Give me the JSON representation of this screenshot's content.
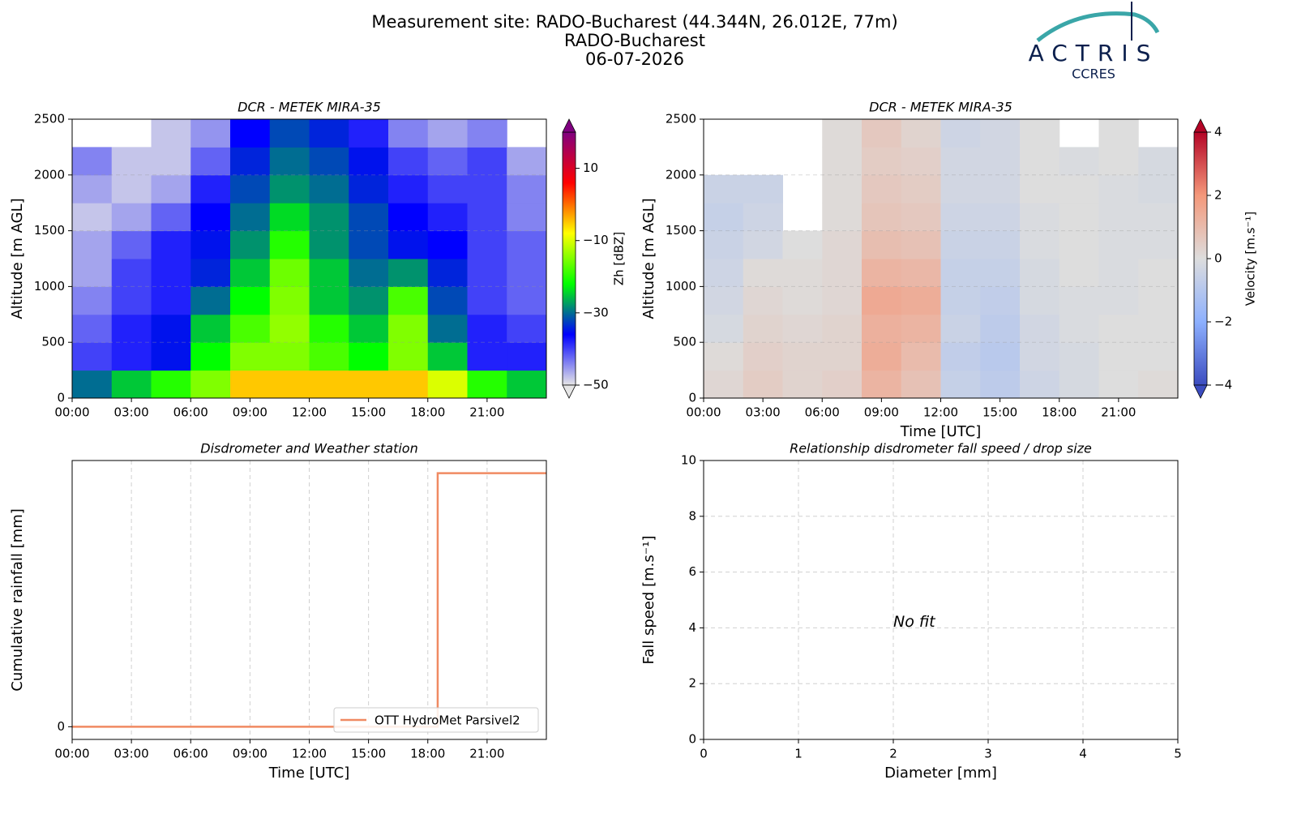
{
  "figure": {
    "title": [
      "Measurement site: RADO-Bucharest (44.344N, 26.012E, 77m)",
      "RADO-Bucharest",
      "06-07-2026"
    ]
  },
  "logo": {
    "name": "ACTRIS",
    "sub": "CCRES"
  },
  "chart_data": [
    {
      "type": "heatmap",
      "title": "DCR - METEK MIRA-35",
      "ylabel": "Altitude [m AGL]",
      "colorbar_label": "Zh [dBZ]",
      "xlim": [
        0,
        24
      ],
      "xticks": [
        {
          "value": 0,
          "label": "00:00"
        },
        {
          "value": 3,
          "label": "03:00"
        },
        {
          "value": 6,
          "label": "06:00"
        },
        {
          "value": 9,
          "label": "09:00"
        },
        {
          "value": 12,
          "label": "12:00"
        },
        {
          "value": 15,
          "label": "15:00"
        },
        {
          "value": 18,
          "label": "18:00"
        },
        {
          "value": 21,
          "label": "21:00"
        }
      ],
      "ylim": [
        0,
        2500
      ],
      "yticks": [
        0,
        500,
        1000,
        1500,
        2000,
        2500
      ],
      "clim": [
        -50,
        20
      ],
      "cticks": [
        {
          "value": -50,
          "label": "−50"
        },
        {
          "value": -30,
          "label": "−30"
        },
        {
          "value": -10,
          "label": "−10"
        },
        10
      ],
      "colors": [
        "#e6e6e6",
        "#0000ff",
        "#00ff00",
        "#ffff00",
        "#ff0000",
        "#800080"
      ],
      "time_bins": [
        0,
        2,
        4,
        6,
        8,
        10,
        12,
        14,
        16,
        18,
        20,
        22,
        24
      ],
      "altitude_bins": [
        0,
        250,
        500,
        750,
        1000,
        1250,
        1500,
        1750,
        2000,
        2250,
        2500
      ],
      "z": [
        [
          -30,
          -25,
          -20,
          -15,
          -5,
          -5,
          -5,
          -5,
          -5,
          -10,
          -20,
          -25
        ],
        [
          -40,
          -38,
          -35,
          -22,
          -15,
          -15,
          -18,
          -22,
          -15,
          -25,
          -38,
          -38
        ],
        [
          -42,
          -38,
          -35,
          -25,
          -18,
          -14,
          -20,
          -25,
          -15,
          -30,
          -38,
          -40
        ],
        [
          -44,
          -40,
          -38,
          -30,
          -22,
          -15,
          -25,
          -28,
          -18,
          -32,
          -40,
          -42
        ],
        [
          -46,
          -40,
          -38,
          -34,
          -25,
          -16,
          -25,
          -30,
          -28,
          -34,
          -40,
          -42
        ],
        [
          -46,
          -42,
          -38,
          -35,
          -28,
          -20,
          -28,
          -32,
          -35,
          -36,
          -40,
          -42
        ],
        [
          -48,
          -46,
          -42,
          -36,
          -30,
          -24,
          -28,
          -32,
          -36,
          -38,
          -40,
          -44
        ],
        [
          -46,
          -48,
          -46,
          -38,
          -32,
          -28,
          -30,
          -34,
          -38,
          -40,
          -40,
          -44
        ],
        [
          -44,
          -48,
          -48,
          -42,
          -34,
          -30,
          -32,
          -35,
          -40,
          -42,
          -40,
          -46
        ],
        [
          null,
          null,
          -48,
          -45,
          -36,
          -32,
          -34,
          -38,
          -44,
          -46,
          -44,
          null
        ]
      ]
    },
    {
      "type": "heatmap",
      "title": "DCR - METEK MIRA-35",
      "xlabel": "Time [UTC]",
      "ylabel": "Altitude [m AGL]",
      "colorbar_label": "Velocity [m.s⁻¹]",
      "xlim": [
        0,
        24
      ],
      "xticks": [
        {
          "value": 0,
          "label": "00:00"
        },
        {
          "value": 3,
          "label": "03:00"
        },
        {
          "value": 6,
          "label": "06:00"
        },
        {
          "value": 9,
          "label": "09:00"
        },
        {
          "value": 12,
          "label": "12:00"
        },
        {
          "value": 15,
          "label": "15:00"
        },
        {
          "value": 18,
          "label": "18:00"
        },
        {
          "value": 21,
          "label": "21:00"
        }
      ],
      "ylim": [
        0,
        2500
      ],
      "yticks": [
        0,
        500,
        1000,
        1500,
        2000,
        2500
      ],
      "clim": [
        -4,
        4
      ],
      "cticks": [
        {
          "value": -4,
          "label": "−4"
        },
        {
          "value": -2,
          "label": "−2"
        },
        0,
        2,
        4
      ],
      "colors": [
        "#3b4cc0",
        "#8db0fe",
        "#dddddd",
        "#f4987a",
        "#b40426"
      ],
      "time_bins": [
        0,
        2,
        4,
        6,
        8,
        10,
        12,
        14,
        16,
        18,
        20,
        22,
        24
      ],
      "altitude_bins": [
        0,
        250,
        500,
        750,
        1000,
        1250,
        1500,
        1750,
        2000,
        2250,
        2500
      ],
      "z": [
        [
          0.2,
          0.5,
          0.3,
          0.4,
          1.2,
          0.8,
          -0.6,
          -0.8,
          -0.4,
          -0.2,
          0,
          0.1
        ],
        [
          0.1,
          0.4,
          0.3,
          0.3,
          1.4,
          1.0,
          -0.7,
          -0.9,
          -0.3,
          -0.2,
          0,
          0
        ],
        [
          -0.2,
          0.3,
          0.2,
          0.3,
          1.3,
          1.2,
          -0.5,
          -0.8,
          -0.3,
          -0.1,
          0,
          0
        ],
        [
          -0.3,
          0.2,
          0.1,
          0.2,
          1.5,
          1.4,
          -0.6,
          -0.7,
          -0.2,
          -0.1,
          -0.1,
          0
        ],
        [
          -0.4,
          0.1,
          0.1,
          0.2,
          1.2,
          1.1,
          -0.6,
          -0.6,
          -0.2,
          0,
          -0.1,
          0
        ],
        [
          -0.5,
          -0.3,
          0,
          0.2,
          0.9,
          0.8,
          -0.5,
          -0.5,
          -0.1,
          0,
          -0.1,
          -0.1
        ],
        [
          -0.6,
          -0.4,
          null,
          0.1,
          0.7,
          0.6,
          -0.4,
          -0.4,
          -0.1,
          0,
          -0.1,
          -0.1
        ],
        [
          -0.5,
          -0.5,
          null,
          0.1,
          0.6,
          0.5,
          -0.3,
          -0.3,
          0,
          0,
          -0.1,
          -0.2
        ],
        [
          null,
          null,
          null,
          0.1,
          0.5,
          0.4,
          -0.3,
          -0.3,
          0,
          -0.1,
          0,
          -0.2
        ],
        [
          null,
          null,
          null,
          0.1,
          0.6,
          0.3,
          -0.4,
          -0.3,
          0,
          null,
          0,
          null
        ]
      ]
    },
    {
      "type": "line",
      "title": "Disdrometer and Weather station",
      "xlabel": "Time [UTC]",
      "ylabel": "Cumulative rainfall [mm]",
      "xlim": [
        0,
        24
      ],
      "xticks": [
        {
          "value": 0,
          "label": "00:00"
        },
        {
          "value": 3,
          "label": "03:00"
        },
        {
          "value": 6,
          "label": "06:00"
        },
        {
          "value": 9,
          "label": "09:00"
        },
        {
          "value": 12,
          "label": "12:00"
        },
        {
          "value": 15,
          "label": "15:00"
        },
        {
          "value": 18,
          "label": "18:00"
        },
        {
          "value": 21,
          "label": "21:00"
        }
      ],
      "ylim": [
        -0.01,
        0.21
      ],
      "yticks": [
        0
      ],
      "grid": "x",
      "legend": "lower right",
      "series": [
        {
          "name": "OTT HydroMet Parsivel2",
          "color": "#f08a62",
          "x": [
            0,
            18.5,
            18.5,
            24
          ],
          "values": [
            0,
            0,
            0.2,
            0.2
          ]
        }
      ]
    },
    {
      "type": "scatter",
      "title": "Relationship disdrometer fall speed / drop size",
      "xlabel": "Diameter [mm]",
      "ylabel": "Fall speed [m.s⁻¹]",
      "xlim": [
        0,
        5
      ],
      "xticks": [
        0,
        1,
        2,
        3,
        4,
        5
      ],
      "ylim": [
        0,
        10
      ],
      "yticks": [
        0,
        2,
        4,
        6,
        8,
        10
      ],
      "grid": "both",
      "annotation": "No fit"
    }
  ]
}
